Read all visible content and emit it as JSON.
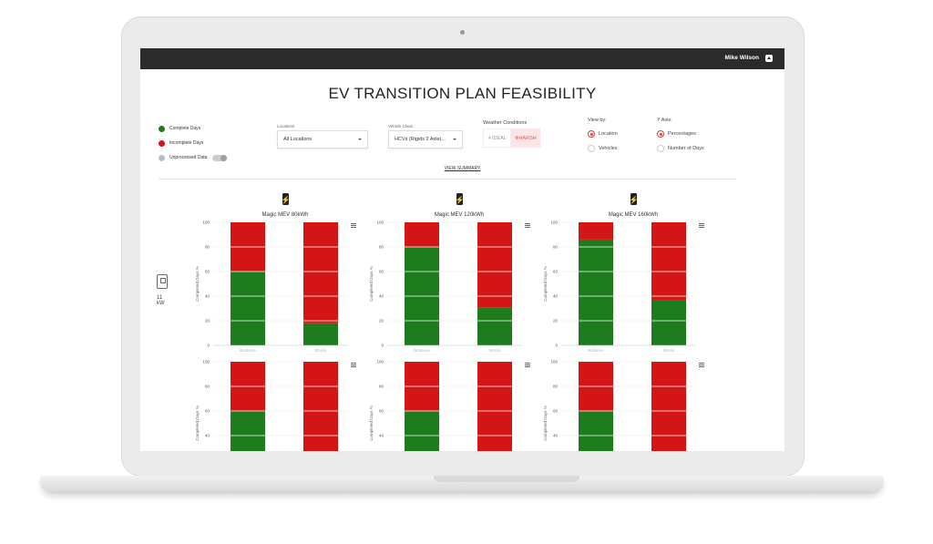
{
  "header": {
    "user_name": "Mike Wilson"
  },
  "page_title": "EV TRANSITION PLAN FEASIBILITY",
  "legend": {
    "items": [
      {
        "label": "Complete Days",
        "color": "#1e7b1e"
      },
      {
        "label": "Incomplete Days",
        "color": "#d31515"
      },
      {
        "label": "Unprocessed Data",
        "color": "#bdbdbd"
      }
    ]
  },
  "filters": {
    "locations": {
      "label": "Locations",
      "value": "All Locations"
    },
    "vehicle_class": {
      "label": "Vehicle Class",
      "value": "HCVs (Rigids 2 Axle)..."
    }
  },
  "weather": {
    "label": "Weather Conditions",
    "ideal": "IDEAL",
    "harsh": "HARSH",
    "selected": "HARSH"
  },
  "view_by": {
    "label": "View by:",
    "options": [
      "Location",
      "Vehicles"
    ],
    "selected": "Location"
  },
  "y_axis": {
    "label": "Y Axis:",
    "options": [
      "Percentages",
      "Number of Days"
    ],
    "selected": "Percentages"
  },
  "view_summary": "VIEW SUMMARY",
  "charger": {
    "power": "11",
    "unit": "kW"
  },
  "colors": {
    "complete": "#1e7b1e",
    "incomplete": "#d31515",
    "category_label": "#8fc6ea"
  },
  "chart_data": [
    {
      "type": "bar",
      "title": "Magic MEV 80kWh",
      "ylabel": "Completed Days %",
      "ylim": [
        0,
        100
      ],
      "yticks": [
        0,
        20,
        40,
        60,
        80,
        100
      ],
      "categories": [
        "Brisbane",
        "Bristol"
      ],
      "series": [
        {
          "name": "Complete Days",
          "values": [
            60,
            18
          ]
        },
        {
          "name": "Incomplete Days",
          "values": [
            40,
            82
          ]
        }
      ]
    },
    {
      "type": "bar",
      "title": "Magic MEV 120kWh",
      "ylabel": "Completed Days %",
      "ylim": [
        0,
        100
      ],
      "yticks": [
        0,
        20,
        40,
        60,
        80,
        100
      ],
      "categories": [
        "Brisbane",
        "Bristol"
      ],
      "series": [
        {
          "name": "Complete Days",
          "values": [
            80,
            31
          ]
        },
        {
          "name": "Incomplete Days",
          "values": [
            20,
            69
          ]
        }
      ]
    },
    {
      "type": "bar",
      "title": "Magic MEV 160kWh",
      "ylabel": "Completed Days %",
      "ylim": [
        0,
        100
      ],
      "yticks": [
        0,
        20,
        40,
        60,
        80,
        100
      ],
      "categories": [
        "Brisbane",
        "Bristol"
      ],
      "series": [
        {
          "name": "Complete Days",
          "values": [
            86,
            37
          ]
        },
        {
          "name": "Incomplete Days",
          "values": [
            14,
            63
          ]
        }
      ]
    },
    {
      "type": "bar",
      "title": "",
      "ylabel": "Completed Days %",
      "ylim": [
        0,
        100
      ],
      "yticks": [
        40,
        60,
        80,
        100
      ],
      "categories": [
        "",
        ""
      ],
      "series": [
        {
          "name": "Complete Days",
          "values": [
            60,
            0
          ]
        },
        {
          "name": "Incomplete Days",
          "values": [
            40,
            100
          ]
        }
      ]
    },
    {
      "type": "bar",
      "title": "",
      "ylabel": "Completed Days %",
      "ylim": [
        0,
        100
      ],
      "yticks": [
        40,
        60,
        80,
        100
      ],
      "categories": [
        "",
        ""
      ],
      "series": [
        {
          "name": "Complete Days",
          "values": [
            60,
            0
          ]
        },
        {
          "name": "Incomplete Days",
          "values": [
            40,
            100
          ]
        }
      ]
    },
    {
      "type": "bar",
      "title": "",
      "ylabel": "Completed Days %",
      "ylim": [
        0,
        100
      ],
      "yticks": [
        40,
        60,
        80,
        100
      ],
      "categories": [
        "",
        ""
      ],
      "series": [
        {
          "name": "Complete Days",
          "values": [
            60,
            0
          ]
        },
        {
          "name": "Incomplete Days",
          "values": [
            40,
            100
          ]
        }
      ]
    }
  ]
}
